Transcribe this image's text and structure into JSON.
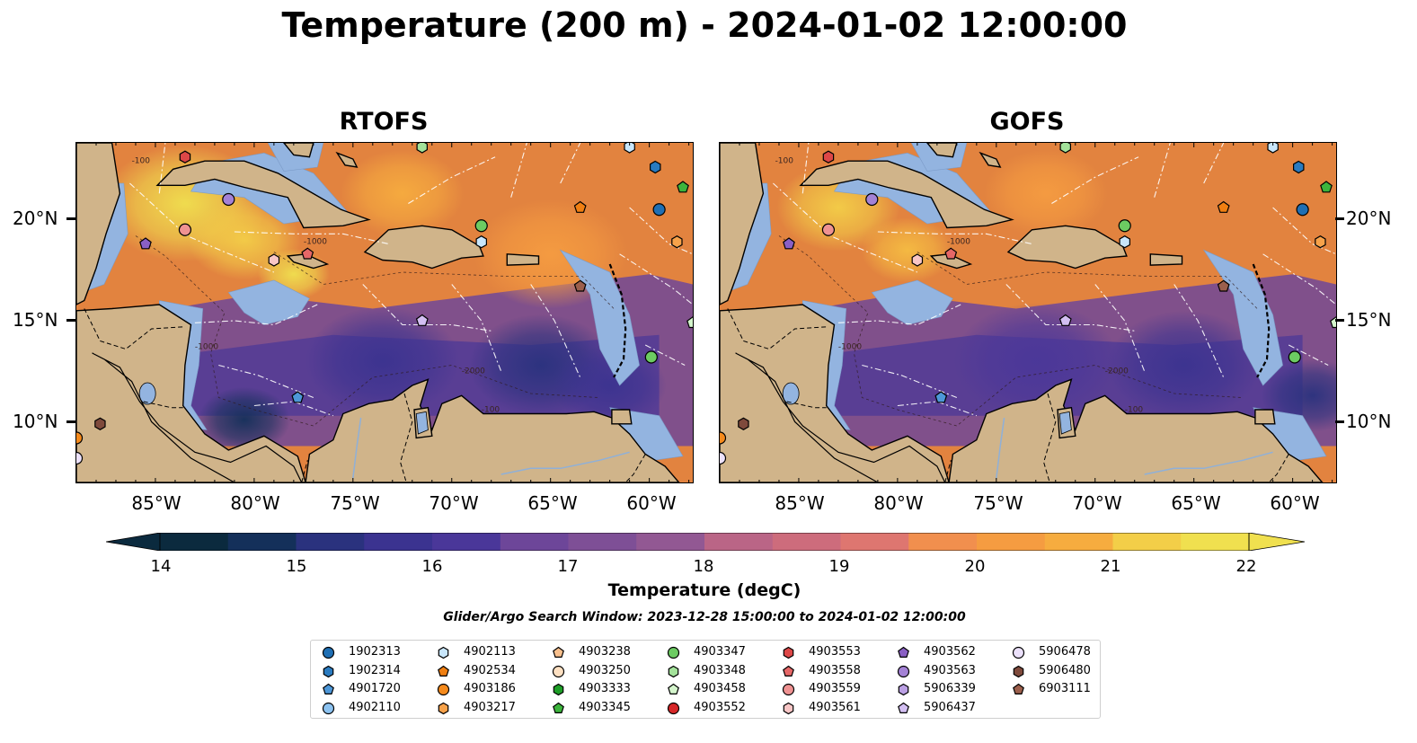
{
  "title": "Temperature (200 m) - 2024-01-02 12:00:00",
  "panels": {
    "left_title": "RTOFS",
    "right_title": "GOFS"
  },
  "axes": {
    "lon_labels": [
      "85°W",
      "80°W",
      "75°W",
      "70°W",
      "65°W",
      "60°W"
    ],
    "lat_labels": [
      "20°N",
      "15°N",
      "10°N"
    ]
  },
  "colorbar": {
    "label": "Temperature (degC)",
    "min": 14,
    "max": 22,
    "ticks": [
      "14",
      "15",
      "16",
      "17",
      "18",
      "19",
      "20",
      "21",
      "22"
    ],
    "colors": [
      "#0b2a3e",
      "#14305a",
      "#1c3170",
      "#2a327e",
      "#3b3390",
      "#4a3799",
      "#5a3d9a",
      "#6d4699",
      "#7e4f96",
      "#925893",
      "#a75f8f",
      "#ba6586",
      "#cd6c7c",
      "#de7670",
      "#ea8260",
      "#f18f4e",
      "#f59c41",
      "#f6ac3f",
      "#f5bc42",
      "#f3ce48",
      "#f0e04f"
    ]
  },
  "search_window": "Glider/Argo Search Window: 2023-12-28 15:00:00 to 2024-01-02 12:00:00",
  "isobath_labels": [
    "-100",
    "-1000",
    "-1000",
    "-2000",
    "-100"
  ],
  "legend": [
    {
      "id": "1902313",
      "color": "#1f6fb4",
      "marker": "circle"
    },
    {
      "id": "1902314",
      "color": "#2a7bc0",
      "marker": "hexagon"
    },
    {
      "id": "4901720",
      "color": "#4d97d8",
      "marker": "pentagon"
    },
    {
      "id": "4902110",
      "color": "#8cc2f0",
      "marker": "circle"
    },
    {
      "id": "4902113",
      "color": "#c8e6fb",
      "marker": "hexagon"
    },
    {
      "id": "4902534",
      "color": "#f07f12",
      "marker": "pentagon"
    },
    {
      "id": "4903186",
      "color": "#f58a1c",
      "marker": "circle"
    },
    {
      "id": "4903217",
      "color": "#f7a24a",
      "marker": "hexagon"
    },
    {
      "id": "4903238",
      "color": "#f9c08d",
      "marker": "pentagon"
    },
    {
      "id": "4903250",
      "color": "#fde0c2",
      "marker": "circle"
    },
    {
      "id": "4903333",
      "color": "#1e9e27",
      "marker": "hexagon"
    },
    {
      "id": "4903345",
      "color": "#3cb43c",
      "marker": "pentagon"
    },
    {
      "id": "4903347",
      "color": "#6ccb62",
      "marker": "circle"
    },
    {
      "id": "4903348",
      "color": "#a3e29a",
      "marker": "hexagon"
    },
    {
      "id": "4903458",
      "color": "#d4f5cc",
      "marker": "pentagon"
    },
    {
      "id": "4903552",
      "color": "#d62728",
      "marker": "circle"
    },
    {
      "id": "4903553",
      "color": "#dd4747",
      "marker": "hexagon"
    },
    {
      "id": "4903558",
      "color": "#e66767",
      "marker": "pentagon"
    },
    {
      "id": "4903559",
      "color": "#ef9292",
      "marker": "circle"
    },
    {
      "id": "4903561",
      "color": "#f8c6c6",
      "marker": "hexagon"
    },
    {
      "id": "4903562",
      "color": "#8a60c4",
      "marker": "pentagon"
    },
    {
      "id": "4903563",
      "color": "#a482d6",
      "marker": "circle"
    },
    {
      "id": "5906339",
      "color": "#bba0e4",
      "marker": "hexagon"
    },
    {
      "id": "5906437",
      "color": "#d3bff2",
      "marker": "pentagon"
    },
    {
      "id": "5906478",
      "color": "#ece1fb",
      "marker": "circle"
    },
    {
      "id": "5906480",
      "color": "#7f4a3c",
      "marker": "hexagon"
    },
    {
      "id": "6903111",
      "color": "#9c5f4c",
      "marker": "pentagon"
    }
  ],
  "map_markers": [
    {
      "id": "4903553",
      "lon": -83.5,
      "lat": 23.3
    },
    {
      "id": "4903348",
      "lon": -71.5,
      "lat": 23.8
    },
    {
      "id": "4902113",
      "lon": -61.0,
      "lat": 23.8
    },
    {
      "id": "1902314",
      "lon": -59.7,
      "lat": 22.8
    },
    {
      "id": "4903345",
      "lon": -58.3,
      "lat": 21.8
    },
    {
      "id": "4903563",
      "lon": -81.3,
      "lat": 21.2
    },
    {
      "id": "1902313",
      "lon": -59.5,
      "lat": 20.7
    },
    {
      "id": "4902534",
      "lon": -63.5,
      "lat": 20.8
    },
    {
      "id": "4903347",
      "lon": -68.5,
      "lat": 19.9
    },
    {
      "id": "4903559",
      "lon": -83.5,
      "lat": 19.7
    },
    {
      "id": "4902113",
      "lon": -68.5,
      "lat": 19.1
    },
    {
      "id": "4903217",
      "lon": -58.6,
      "lat": 19.1
    },
    {
      "id": "4903562",
      "lon": -85.5,
      "lat": 19.0
    },
    {
      "id": "4903558",
      "lon": -77.3,
      "lat": 18.5
    },
    {
      "id": "4903561",
      "lon": -79.0,
      "lat": 18.2
    },
    {
      "id": "6903111",
      "lon": -63.5,
      "lat": 16.9
    },
    {
      "id": "5906437",
      "lon": -71.5,
      "lat": 15.2
    },
    {
      "id": "4903458",
      "lon": -57.8,
      "lat": 15.1
    },
    {
      "id": "4903347",
      "lon": -59.9,
      "lat": 13.4
    },
    {
      "id": "4901720",
      "lon": -77.8,
      "lat": 11.4
    },
    {
      "id": "5906480",
      "lon": -87.8,
      "lat": 10.1
    },
    {
      "id": "4903186",
      "lon": -89.0,
      "lat": 9.4
    },
    {
      "id": "5906478",
      "lon": -89.0,
      "lat": 8.4
    }
  ],
  "hot_spots_rtofs": [
    {
      "lon": -83.5,
      "lat": 21.0,
      "r": 3.2,
      "color": "#f0e04f"
    },
    {
      "lon": -80.5,
      "lat": 19.2,
      "r": 2.2,
      "color": "#f3ce48"
    },
    {
      "lon": -78.0,
      "lat": 17.5,
      "r": 1.4,
      "color": "#f0e04f"
    },
    {
      "lon": -72.5,
      "lat": 21.5,
      "r": 2.4,
      "color": "#f6ac3f"
    },
    {
      "lon": -65.0,
      "lat": 18.5,
      "r": 3.0,
      "color": "#f59c41"
    }
  ],
  "hot_spots_gofs": [
    {
      "lon": -83.0,
      "lat": 20.8,
      "r": 2.4,
      "color": "#f3ce48"
    },
    {
      "lon": -79.5,
      "lat": 18.7,
      "r": 1.8,
      "color": "#f5bc42"
    },
    {
      "lon": -72.5,
      "lat": 21.5,
      "r": 2.4,
      "color": "#f59c41"
    }
  ],
  "cold_spots_rtofs": [
    {
      "lon": -73.5,
      "lat": 13.2,
      "r": 3.0,
      "color": "#3b3390"
    },
    {
      "lon": -65.5,
      "lat": 13.0,
      "r": 2.8,
      "color": "#2a327e"
    },
    {
      "lon": -80.5,
      "lat": 10.3,
      "r": 1.8,
      "color": "#14305a"
    },
    {
      "lon": -62.0,
      "lat": 12.0,
      "r": 2.2,
      "color": "#3b3390"
    }
  ],
  "cold_spots_gofs": [
    {
      "lon": -73.0,
      "lat": 13.2,
      "r": 3.2,
      "color": "#4a3799"
    },
    {
      "lon": -65.5,
      "lat": 13.0,
      "r": 3.0,
      "color": "#3b3390"
    },
    {
      "lon": -59.0,
      "lat": 11.5,
      "r": 2.0,
      "color": "#2a327e"
    }
  ]
}
